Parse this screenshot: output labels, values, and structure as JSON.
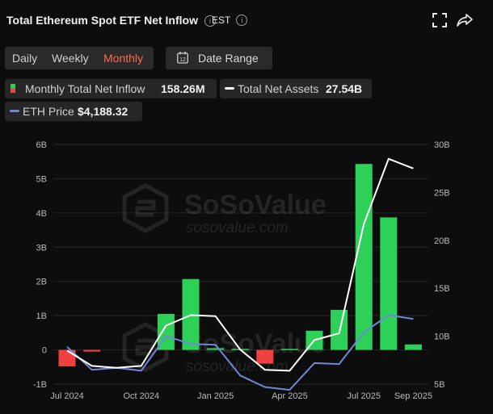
{
  "header": {
    "title": "Total Ethereum Spot ETF Net Inflow",
    "info_symbol": "i",
    "timezone": "EST",
    "expand_icon": "expand-icon",
    "share_icon": "share-icon"
  },
  "period_tabs": [
    {
      "label": "Daily",
      "active": false
    },
    {
      "label": "Weekly",
      "active": false
    },
    {
      "label": "Monthly",
      "active": true
    }
  ],
  "date_range": {
    "label": "Date Range",
    "calendar_day": "12"
  },
  "legend": {
    "inflow": {
      "label": "Monthly Total Net Inflow",
      "value": "158.26M"
    },
    "assets": {
      "label": "Total Net Assets",
      "value": "27.54B"
    },
    "eth": {
      "label": "ETH Price",
      "value": "$4,188.32"
    }
  },
  "watermark": {
    "brand": "SoSoValue",
    "url": "sosovalue.com"
  },
  "colors": {
    "positive": "#2ed158",
    "negative": "#f04040",
    "assets_line": "#ffffff",
    "eth_line": "#6f86d9",
    "accent": "#ff6a4a"
  },
  "chart_data": {
    "type": "bar",
    "x_ticks": [
      "Jul 2024",
      "Oct 2024",
      "Jan 2025",
      "Apr 2025",
      "Jul 2025",
      "Sep 2025"
    ],
    "categories": [
      "Jul 2024",
      "Aug 2024",
      "Sep 2024",
      "Oct 2024",
      "Nov 2024",
      "Dec 2024",
      "Jan 2025",
      "Feb 2025",
      "Mar 2025",
      "Apr 2025",
      "May 2025",
      "Jun 2025",
      "Jul 2025",
      "Aug 2025",
      "Sep 2025"
    ],
    "y_left": {
      "ticks": [
        "-1B",
        "0",
        "1B",
        "2B",
        "3B",
        "4B",
        "5B",
        "6B"
      ],
      "ylim": [
        -1,
        6
      ],
      "unit": "B USD"
    },
    "y_right": {
      "ticks": [
        "5B",
        "10B",
        "15B",
        "20B",
        "25B",
        "30B"
      ],
      "ylim": [
        5,
        30
      ],
      "unit": "B USD"
    },
    "grid": true,
    "series": [
      {
        "name": "Monthly Total Net Inflow",
        "axis": "left",
        "kind": "bar",
        "values": [
          -0.48,
          -0.05,
          0.0,
          0.0,
          1.05,
          2.07,
          0.05,
          0.03,
          -0.4,
          0.03,
          0.56,
          1.17,
          5.43,
          3.87,
          0.16
        ]
      },
      {
        "name": "Total Net Assets",
        "axis": "right",
        "kind": "line",
        "values": [
          8.5,
          6.9,
          6.7,
          6.9,
          11.1,
          12.2,
          12.1,
          8.6,
          6.5,
          6.4,
          9.6,
          10.3,
          21.7,
          28.5,
          27.5
        ]
      },
      {
        "name": "ETH Price",
        "axis": "right",
        "kind": "line",
        "scale_note": "relative",
        "values": [
          8.9,
          6.5,
          6.7,
          6.4,
          10.0,
          9.2,
          9.1,
          5.9,
          4.7,
          4.4,
          7.2,
          7.1,
          10.4,
          12.2,
          11.8
        ]
      }
    ]
  }
}
